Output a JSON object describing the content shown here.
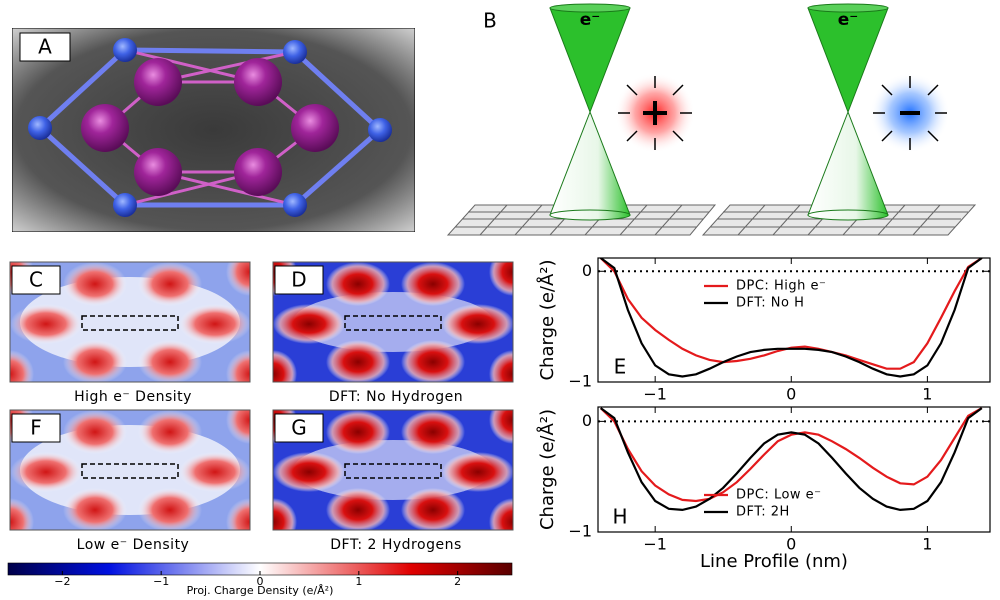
{
  "panels": {
    "a": {
      "label": "A"
    },
    "b": {
      "label": "B",
      "beam_left": "e⁻",
      "beam_right": "e⁻"
    },
    "c": {
      "label": "C",
      "caption": "High e⁻ Density"
    },
    "d": {
      "label": "D",
      "caption": "DFT: No Hydrogen"
    },
    "f": {
      "label": "F",
      "caption": "Low e⁻ Density"
    },
    "g": {
      "label": "G",
      "caption": "DFT: 2 Hydrogens"
    }
  },
  "colorbar": {
    "label": "Proj. Charge Density (e/Å²)",
    "lim": [
      -2.55,
      2.55
    ],
    "ticks": [
      {
        "value": -2,
        "label": "−2"
      },
      {
        "value": -1,
        "label": "−1"
      },
      0,
      1,
      2
    ]
  },
  "chart_data": [
    {
      "type": "line",
      "panel_label": "E",
      "ylabel": "Charge (e/Å²)",
      "x": [
        -1.4,
        -1.3,
        -1.2,
        -1.1,
        -1.0,
        -0.9,
        -0.8,
        -0.7,
        -0.6,
        -0.5,
        -0.4,
        -0.3,
        -0.2,
        -0.1,
        0,
        0.1,
        0.2,
        0.3,
        0.4,
        0.5,
        0.6,
        0.7,
        0.8,
        0.9,
        1.0,
        1.1,
        1.2,
        1.3,
        1.4
      ],
      "series": [
        {
          "name": "DPC: High e⁻",
          "color": "#e41a1c",
          "values": [
            0.12,
            0.0,
            -0.25,
            -0.42,
            -0.53,
            -0.62,
            -0.7,
            -0.76,
            -0.8,
            -0.82,
            -0.81,
            -0.79,
            -0.76,
            -0.72,
            -0.69,
            -0.68,
            -0.7,
            -0.73,
            -0.76,
            -0.8,
            -0.84,
            -0.88,
            -0.88,
            -0.82,
            -0.65,
            -0.42,
            -0.18,
            0.04,
            0.12
          ]
        },
        {
          "name": "DFT: No H",
          "color": "#000000",
          "values": [
            0.12,
            0.03,
            -0.35,
            -0.65,
            -0.85,
            -0.93,
            -0.95,
            -0.93,
            -0.88,
            -0.82,
            -0.77,
            -0.73,
            -0.71,
            -0.7,
            -0.7,
            -0.7,
            -0.71,
            -0.73,
            -0.77,
            -0.82,
            -0.88,
            -0.93,
            -0.95,
            -0.93,
            -0.85,
            -0.65,
            -0.35,
            0.03,
            0.12
          ]
        }
      ],
      "xlim": [
        -1.42,
        1.46
      ],
      "ylim": [
        -1,
        0.12
      ],
      "xticks": [
        {
          "value": -1,
          "label": "−1"
        },
        0,
        1
      ],
      "yticks": [
        {
          "value": -1,
          "label": "−1"
        },
        0
      ],
      "reference_line": 0,
      "legend": "upper center"
    },
    {
      "type": "line",
      "panel_label": "H",
      "ylabel": "Charge (e/Å²)",
      "xlabel": "Line Profile (nm)",
      "x": [
        -1.4,
        -1.3,
        -1.2,
        -1.1,
        -1.0,
        -0.9,
        -0.8,
        -0.7,
        -0.6,
        -0.5,
        -0.4,
        -0.3,
        -0.2,
        -0.1,
        0,
        0.1,
        0.2,
        0.3,
        0.4,
        0.5,
        0.6,
        0.7,
        0.8,
        0.9,
        1.0,
        1.1,
        1.2,
        1.3,
        1.4
      ],
      "series": [
        {
          "name": "DPC: Low e⁻",
          "color": "#e41a1c",
          "values": [
            0.12,
            0.0,
            -0.25,
            -0.45,
            -0.58,
            -0.66,
            -0.71,
            -0.72,
            -0.7,
            -0.64,
            -0.55,
            -0.43,
            -0.3,
            -0.18,
            -0.12,
            -0.1,
            -0.12,
            -0.18,
            -0.25,
            -0.33,
            -0.42,
            -0.5,
            -0.56,
            -0.57,
            -0.5,
            -0.35,
            -0.15,
            0.05,
            0.12
          ]
        },
        {
          "name": "DFT: 2H",
          "color": "#000000",
          "values": [
            0.12,
            0.03,
            -0.28,
            -0.55,
            -0.72,
            -0.79,
            -0.8,
            -0.77,
            -0.7,
            -0.6,
            -0.47,
            -0.33,
            -0.2,
            -0.12,
            -0.1,
            -0.12,
            -0.2,
            -0.33,
            -0.47,
            -0.6,
            -0.7,
            -0.77,
            -0.8,
            -0.79,
            -0.72,
            -0.55,
            -0.28,
            0.03,
            0.12
          ]
        }
      ],
      "xlim": [
        -1.42,
        1.46
      ],
      "ylim": [
        -1,
        0.13
      ],
      "xticks": [
        {
          "value": -1,
          "label": "−1"
        },
        0,
        1
      ],
      "yticks": [
        {
          "value": -1,
          "label": "−1"
        },
        0
      ],
      "reference_line": 0,
      "legend": "lower center"
    }
  ]
}
